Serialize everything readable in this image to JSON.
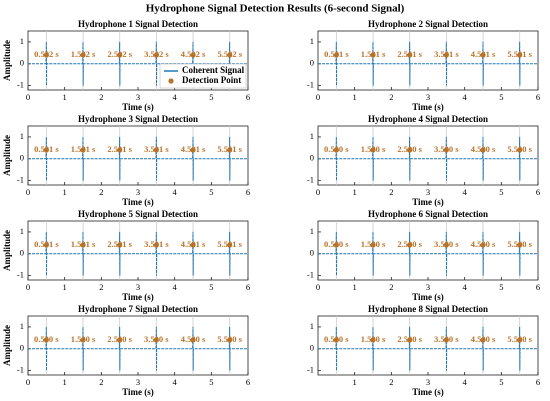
{
  "title": "Hydrophone Signal Detection Results (6-second Signal)",
  "chart_data": [
    {
      "type": "line",
      "title": "Hydrophone 1 Signal Detection",
      "xlabel": "Time (s)",
      "ylabel": "Amplitude",
      "xlim": [
        0,
        6
      ],
      "xticks": [
        0,
        1,
        2,
        3,
        4,
        5,
        6
      ],
      "ylim": [
        -1.2,
        1.5
      ],
      "yticks": [
        -1,
        0,
        1
      ],
      "legend": "lower right",
      "series": [
        {
          "name": "Coherent Signal",
          "color": "#1f77b4",
          "x": [
            0,
            0.49,
            0.5,
            0.505,
            0.51,
            1.49,
            1.5,
            1.505,
            1.51,
            2.49,
            2.5,
            2.505,
            2.51,
            3.49,
            3.5,
            3.505,
            3.51,
            4.49,
            4.5,
            4.505,
            4.51,
            5.49,
            5.5,
            5.505,
            5.51,
            6
          ],
          "values": [
            0,
            0,
            1,
            -1,
            0,
            0,
            1,
            -1,
            0,
            0,
            1,
            -1,
            0,
            0,
            1,
            -1,
            0,
            0,
            1,
            -1,
            0,
            0,
            1,
            -1,
            0,
            0
          ]
        },
        {
          "name": "Detection Point",
          "color": "#b8732a",
          "x": [
            0.502,
            1.502,
            2.502,
            3.502,
            4.502,
            5.502
          ],
          "values": [
            0.4,
            0.4,
            0.4,
            0.4,
            0.4,
            0.4
          ],
          "x_labels": [
            "0.502 s",
            "1.502 s",
            "2.502 s",
            "3.502 s",
            "4.502 s",
            "5.502 s"
          ]
        }
      ]
    },
    {
      "type": "line",
      "title": "Hydrophone 2 Signal Detection",
      "xlabel": "Time (s)",
      "xlim": [
        0,
        6
      ],
      "xticks": [
        0,
        1,
        2,
        3,
        4,
        5,
        6
      ],
      "ylim": [
        -1.2,
        1.5
      ],
      "yticks": [
        -1,
        0,
        1
      ],
      "series": [
        {
          "color": "#1f77b4",
          "x": [
            0,
            0.49,
            0.5,
            0.505,
            0.51,
            1.49,
            1.5,
            1.505,
            1.51,
            2.49,
            2.5,
            2.505,
            2.51,
            3.49,
            3.5,
            3.505,
            3.51,
            4.49,
            4.5,
            4.505,
            4.51,
            5.49,
            5.5,
            5.505,
            5.51,
            6
          ],
          "values": [
            0,
            0,
            1,
            -1,
            0,
            0,
            1,
            -1,
            0,
            0,
            1,
            -1,
            0,
            0,
            1,
            -1,
            0,
            0,
            1,
            -1,
            0,
            0,
            1,
            -1,
            0,
            0
          ]
        },
        {
          "color": "#b8732a",
          "x": [
            0.501,
            1.501,
            2.501,
            3.501,
            4.501,
            5.501
          ],
          "values": [
            0.4,
            0.4,
            0.4,
            0.4,
            0.4,
            0.4
          ],
          "x_labels": [
            "0.501 s",
            "1.501 s",
            "2.501 s",
            "3.501 s",
            "4.501 s",
            "5.501 s"
          ]
        }
      ]
    },
    {
      "type": "line",
      "title": "Hydrophone 3 Signal Detection",
      "xlabel": "Time (s)",
      "ylabel": "Amplitude",
      "xlim": [
        0,
        6
      ],
      "xticks": [
        0,
        1,
        2,
        3,
        4,
        5,
        6
      ],
      "ylim": [
        -1.2,
        1.5
      ],
      "yticks": [
        -1,
        0,
        1
      ],
      "series": [
        {
          "color": "#1f77b4",
          "x": [
            0,
            0.49,
            0.5,
            0.505,
            0.51,
            1.49,
            1.5,
            1.505,
            1.51,
            2.49,
            2.5,
            2.505,
            2.51,
            3.49,
            3.5,
            3.505,
            3.51,
            4.49,
            4.5,
            4.505,
            4.51,
            5.49,
            5.5,
            5.505,
            5.51,
            6
          ],
          "values": [
            0,
            0,
            1,
            -1,
            0,
            0,
            1,
            -1,
            0,
            0,
            1,
            -1,
            0,
            0,
            1,
            -1,
            0,
            0,
            1,
            -1,
            0,
            0,
            1,
            -1,
            0,
            0
          ]
        },
        {
          "color": "#b8732a",
          "x": [
            0.501,
            1.501,
            2.501,
            3.501,
            4.501,
            5.501
          ],
          "values": [
            0.4,
            0.4,
            0.4,
            0.4,
            0.4,
            0.4
          ],
          "x_labels": [
            "0.501 s",
            "1.501 s",
            "2.501 s",
            "3.501 s",
            "4.501 s",
            "5.501 s"
          ]
        }
      ]
    },
    {
      "type": "line",
      "title": "Hydrophone 4 Signal Detection",
      "xlabel": "Time (s)",
      "xlim": [
        0,
        6
      ],
      "xticks": [
        0,
        1,
        2,
        3,
        4,
        5,
        6
      ],
      "ylim": [
        -1.2,
        1.5
      ],
      "yticks": [
        -1,
        0,
        1
      ],
      "series": [
        {
          "color": "#1f77b4",
          "x": [
            0,
            0.49,
            0.5,
            0.505,
            0.51,
            1.49,
            1.5,
            1.505,
            1.51,
            2.49,
            2.5,
            2.505,
            2.51,
            3.49,
            3.5,
            3.505,
            3.51,
            4.49,
            4.5,
            4.505,
            4.51,
            5.49,
            5.5,
            5.505,
            5.51,
            6
          ],
          "values": [
            0,
            0,
            1,
            -1,
            0,
            0,
            1,
            -1,
            0,
            0,
            1,
            -1,
            0,
            0,
            1,
            -1,
            0,
            0,
            1,
            -1,
            0,
            0,
            1,
            -1,
            0,
            0
          ]
        },
        {
          "color": "#b8732a",
          "x": [
            0.5,
            1.5,
            2.5,
            3.5,
            4.5,
            5.5
          ],
          "values": [
            0.4,
            0.4,
            0.4,
            0.4,
            0.4,
            0.4
          ],
          "x_labels": [
            "0.500 s",
            "1.500 s",
            "2.500 s",
            "3.500 s",
            "4.500 s",
            "5.500 s"
          ]
        }
      ]
    },
    {
      "type": "line",
      "title": "Hydrophone 5 Signal Detection",
      "xlabel": "Time (s)",
      "ylabel": "Amplitude",
      "xlim": [
        0,
        6
      ],
      "xticks": [
        0,
        1,
        2,
        3,
        4,
        5,
        6
      ],
      "ylim": [
        -1.2,
        1.5
      ],
      "yticks": [
        -1,
        0,
        1
      ],
      "series": [
        {
          "color": "#1f77b4",
          "x": [
            0,
            0.49,
            0.5,
            0.505,
            0.51,
            1.49,
            1.5,
            1.505,
            1.51,
            2.49,
            2.5,
            2.505,
            2.51,
            3.49,
            3.5,
            3.505,
            3.51,
            4.49,
            4.5,
            4.505,
            4.51,
            5.49,
            5.5,
            5.505,
            5.51,
            6
          ],
          "values": [
            0,
            0,
            1,
            -1,
            0,
            0,
            1,
            -1,
            0,
            0,
            1,
            -1,
            0,
            0,
            1,
            -1,
            0,
            0,
            1,
            -1,
            0,
            0,
            1,
            -1,
            0,
            0
          ]
        },
        {
          "color": "#b8732a",
          "x": [
            0.501,
            1.501,
            2.501,
            3.501,
            4.501,
            5.501
          ],
          "values": [
            0.4,
            0.4,
            0.4,
            0.4,
            0.4,
            0.4
          ],
          "x_labels": [
            "0.501 s",
            "1.501 s",
            "2.501 s",
            "3.501 s",
            "4.501 s",
            "5.501 s"
          ]
        }
      ]
    },
    {
      "type": "line",
      "title": "Hydrophone 6 Signal Detection",
      "xlabel": "Time (s)",
      "xlim": [
        0,
        6
      ],
      "xticks": [
        0,
        1,
        2,
        3,
        4,
        5,
        6
      ],
      "ylim": [
        -1.2,
        1.5
      ],
      "yticks": [
        -1,
        0,
        1
      ],
      "series": [
        {
          "color": "#1f77b4",
          "x": [
            0,
            0.49,
            0.5,
            0.505,
            0.51,
            1.49,
            1.5,
            1.505,
            1.51,
            2.49,
            2.5,
            2.505,
            2.51,
            3.49,
            3.5,
            3.505,
            3.51,
            4.49,
            4.5,
            4.505,
            4.51,
            5.49,
            5.5,
            5.505,
            5.51,
            6
          ],
          "values": [
            0,
            0,
            1,
            -1,
            0,
            0,
            1,
            -1,
            0,
            0,
            1,
            -1,
            0,
            0,
            1,
            -1,
            0,
            0,
            1,
            -1,
            0,
            0,
            1,
            -1,
            0,
            0
          ]
        },
        {
          "color": "#b8732a",
          "x": [
            0.5,
            1.5,
            2.5,
            3.5,
            4.5,
            5.5
          ],
          "values": [
            0.4,
            0.4,
            0.4,
            0.4,
            0.4,
            0.4
          ],
          "x_labels": [
            "0.500 s",
            "1.500 s",
            "2.500 s",
            "3.500 s",
            "4.500 s",
            "5.500 s"
          ]
        }
      ]
    },
    {
      "type": "line",
      "title": "Hydrophone 7 Signal Detection",
      "xlabel": "Time (s)",
      "ylabel": "Amplitude",
      "xlim": [
        0,
        6
      ],
      "xticks": [
        0,
        1,
        2,
        3,
        4,
        5,
        6
      ],
      "ylim": [
        -1.2,
        1.5
      ],
      "yticks": [
        -1,
        0,
        1
      ],
      "series": [
        {
          "color": "#1f77b4",
          "x": [
            0,
            0.49,
            0.5,
            0.505,
            0.51,
            1.49,
            1.5,
            1.505,
            1.51,
            2.49,
            2.5,
            2.505,
            2.51,
            3.49,
            3.5,
            3.505,
            3.51,
            4.49,
            4.5,
            4.505,
            4.51,
            5.49,
            5.5,
            5.505,
            5.51,
            6
          ],
          "values": [
            0,
            0,
            1,
            -1,
            0,
            0,
            1,
            -1,
            0,
            0,
            1,
            -1,
            0,
            0,
            1,
            -1,
            0,
            0,
            1,
            -1,
            0,
            0,
            1,
            -1,
            0,
            0
          ]
        },
        {
          "color": "#b8732a",
          "x": [
            0.5,
            1.5,
            2.5,
            3.5,
            4.5,
            5.5
          ],
          "values": [
            0.4,
            0.4,
            0.4,
            0.4,
            0.4,
            0.4
          ],
          "x_labels": [
            "0.500 s",
            "1.500 s",
            "2.500 s",
            "3.500 s",
            "4.500 s",
            "5.500 s"
          ]
        }
      ]
    },
    {
      "type": "line",
      "title": "Hydrophone 8 Signal Detection",
      "xlabel": "Time (s)",
      "xlim": [
        0,
        6
      ],
      "xticks": [
        1,
        2,
        3,
        4,
        5,
        6
      ],
      "ylim": [
        -1.2,
        1.5
      ],
      "yticks": [
        -1,
        0,
        1
      ],
      "series": [
        {
          "color": "#1f77b4",
          "x": [
            0,
            0.49,
            0.5,
            0.505,
            0.51,
            1.49,
            1.5,
            1.505,
            1.51,
            2.49,
            2.5,
            2.505,
            2.51,
            3.49,
            3.5,
            3.505,
            3.51,
            4.49,
            4.5,
            4.505,
            4.51,
            5.49,
            5.5,
            5.505,
            5.51,
            6
          ],
          "values": [
            0,
            0,
            1,
            -1,
            0,
            0,
            1,
            -1,
            0,
            0,
            1,
            -1,
            0,
            0,
            1,
            -1,
            0,
            0,
            1,
            -1,
            0,
            0,
            1,
            -1,
            0,
            0
          ]
        },
        {
          "color": "#b8732a",
          "x": [
            0.5,
            1.5,
            2.5,
            3.5,
            4.5,
            5.5
          ],
          "values": [
            0.4,
            0.4,
            0.4,
            0.4,
            0.4,
            0.4
          ],
          "x_labels": [
            "0.500 s",
            "1.500 s",
            "2.500 s",
            "3.500 s",
            "4.500 s",
            "5.500 s"
          ]
        }
      ]
    }
  ]
}
